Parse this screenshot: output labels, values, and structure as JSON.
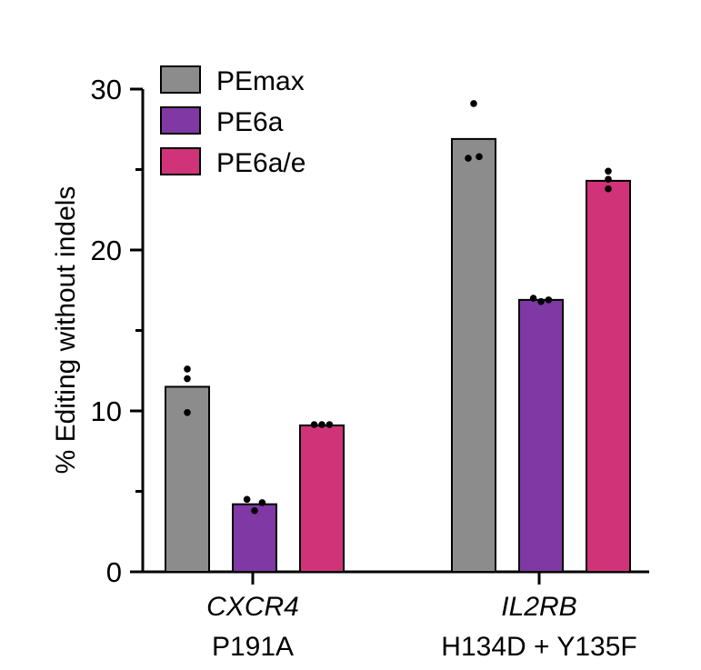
{
  "chart_data": {
    "type": "bar",
    "title": "",
    "ylabel": "% Editing without indels",
    "ylim": [
      0,
      30
    ],
    "yticks": [
      0,
      10,
      20,
      30
    ],
    "groups": [
      {
        "gene": "CXCR4",
        "mutation": "P191A"
      },
      {
        "gene": "IL2RB",
        "mutation": "H134D + Y135F"
      }
    ],
    "series": [
      {
        "name": "PEmax",
        "color": "#8c8c8c",
        "values": [
          11.5,
          26.9
        ],
        "points": [
          [
            12.6,
            12.0,
            9.9
          ],
          [
            29.1,
            25.7,
            25.8
          ]
        ]
      },
      {
        "name": "PE6a",
        "color": "#8038a4",
        "values": [
          4.2,
          16.9
        ],
        "points": [
          [
            4.5,
            3.8,
            4.3
          ],
          [
            17.0,
            16.8,
            16.9
          ]
        ]
      },
      {
        "name": "PE6a/e",
        "color": "#d03378",
        "values": [
          9.1,
          24.3
        ],
        "points": [
          [
            9.15,
            9.15,
            9.15
          ],
          [
            24.9,
            24.4,
            23.8
          ]
        ]
      }
    ],
    "legend": "top-left",
    "grid": false
  }
}
